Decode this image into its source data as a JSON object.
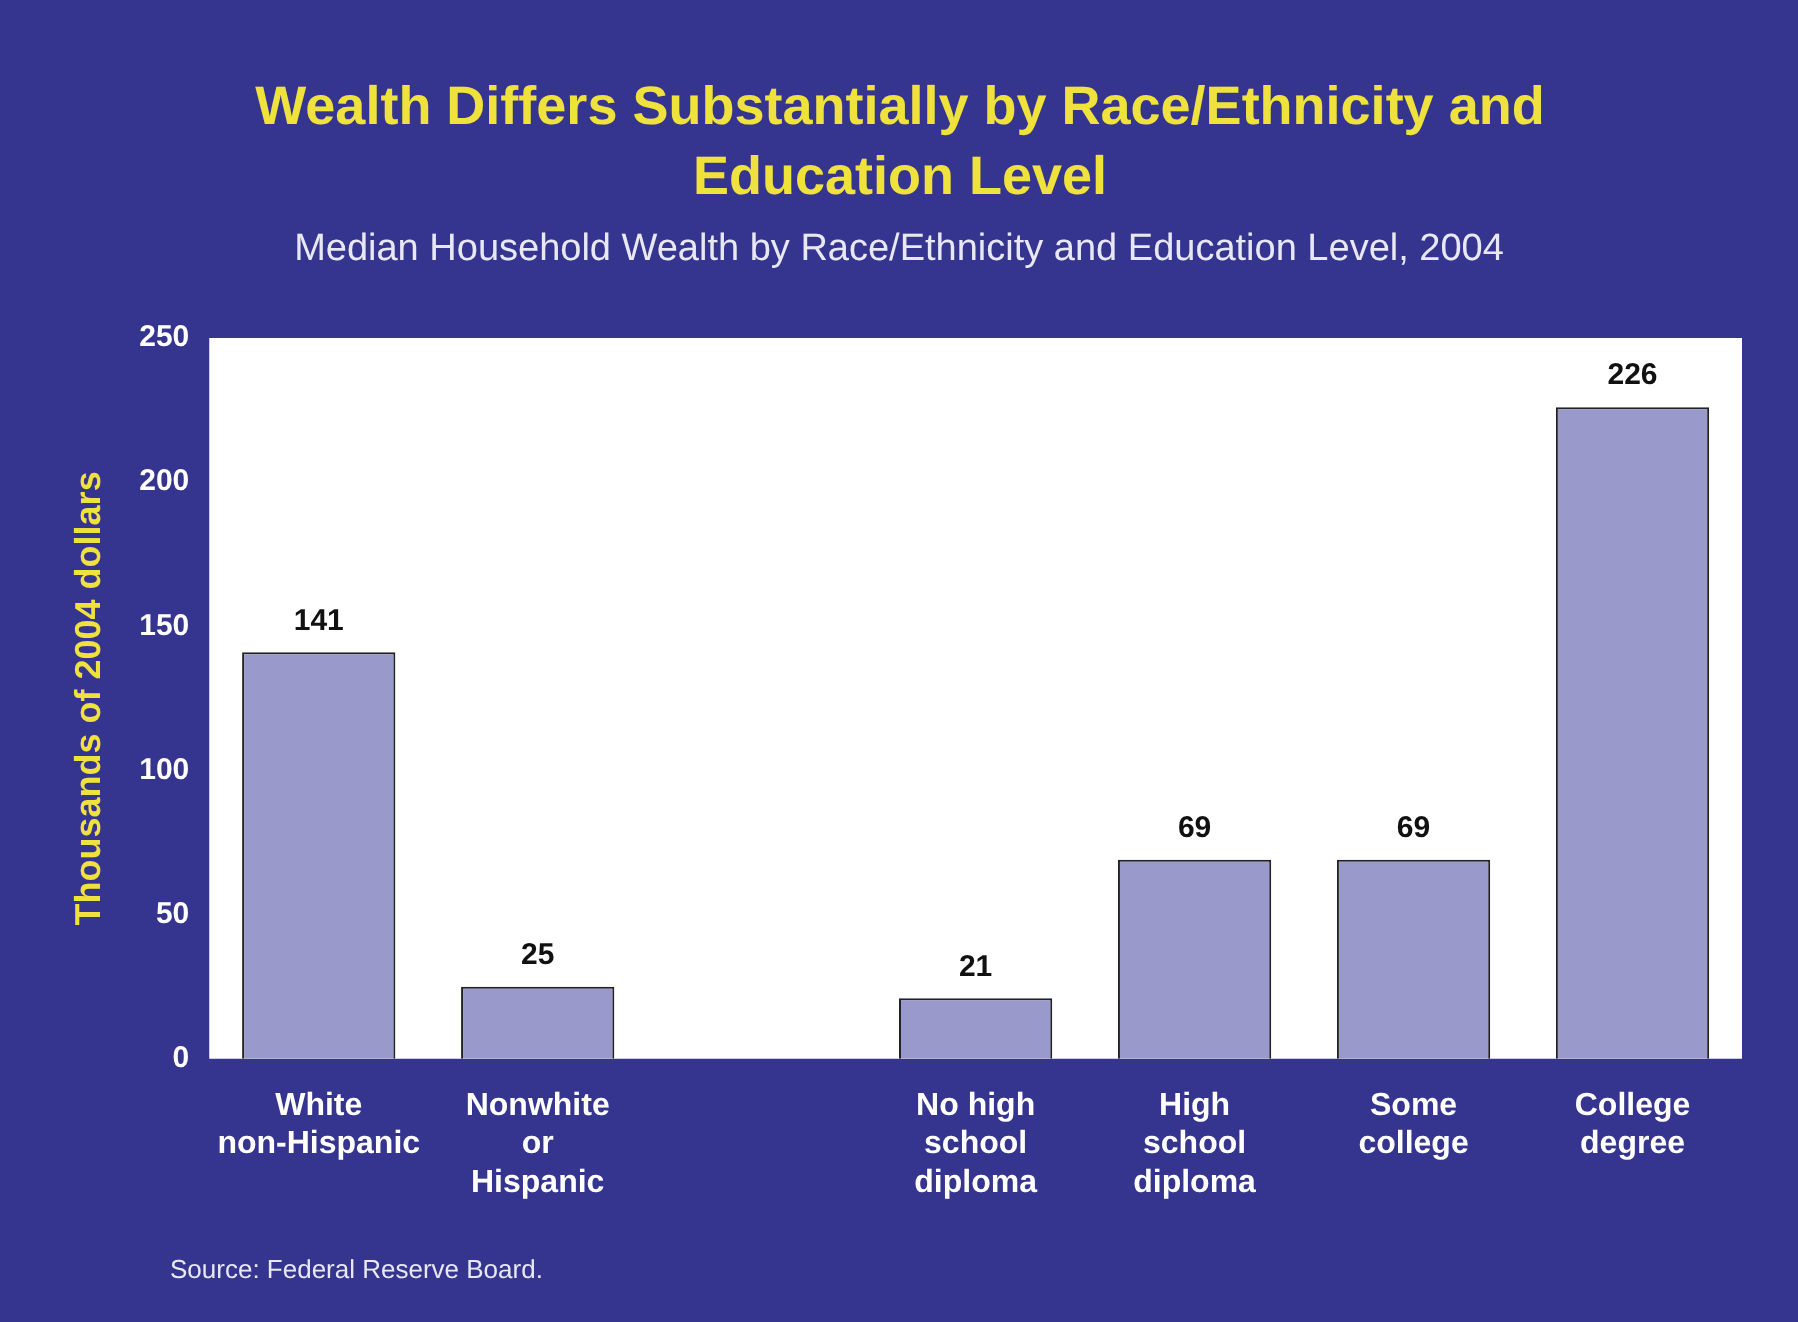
{
  "chart_data": {
    "type": "bar",
    "title": "Wealth Differs Substantially by Race/Ethnicity and Education Level",
    "subtitle": "Median Household Wealth by Race/Ethnicity and Education Level, 2004",
    "ylabel": "Thousands of 2004 dollars",
    "categories": [
      "White non-Hispanic",
      "Nonwhite or Hispanic",
      null,
      "No high school diploma",
      "High school diploma",
      "Some college",
      "College degree"
    ],
    "values": [
      141,
      25,
      null,
      21,
      69,
      69,
      226
    ],
    "color": "#9999cc",
    "ylim": [
      0,
      250
    ],
    "yticks": [
      0,
      50,
      100,
      150,
      200,
      250
    ],
    "grid": false,
    "legend": false,
    "data_labels": true,
    "annotations": [
      "Source: Federal Reserve Board."
    ]
  }
}
